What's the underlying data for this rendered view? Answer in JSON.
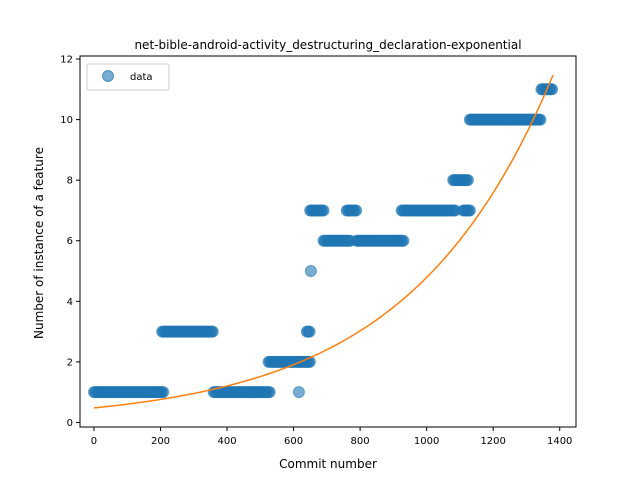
{
  "chart_data": {
    "type": "scatter",
    "title": "net-bible-android-activity_destructuring_declaration-exponential",
    "xlabel": "Commit number",
    "ylabel": "Number of instance of a feature",
    "xlim": [
      -42,
      1449
    ],
    "ylim": [
      -0.15,
      12.1
    ],
    "xticks": [
      0,
      200,
      400,
      600,
      800,
      1000,
      1200,
      1400
    ],
    "yticks": [
      0,
      2,
      4,
      6,
      8,
      10,
      12
    ],
    "grid": false,
    "legend": {
      "position": "top-left",
      "entries": [
        "data"
      ]
    },
    "series": [
      {
        "name": "data",
        "kind": "points",
        "color": "#1f77b4",
        "segments": [
          {
            "x_start": 0,
            "x_end": 210,
            "y": 1
          },
          {
            "x_start": 205,
            "x_end": 360,
            "y": 3
          },
          {
            "x_start": 360,
            "x_end": 530,
            "y": 1
          },
          {
            "x_start": 525,
            "x_end": 650,
            "y": 2
          },
          {
            "x_start": 640,
            "x_end": 650,
            "y": 3
          },
          {
            "x_start": 650,
            "x_end": 690,
            "y": 7
          },
          {
            "x_start": 690,
            "x_end": 770,
            "y": 6
          },
          {
            "x_start": 760,
            "x_end": 790,
            "y": 7
          },
          {
            "x_start": 790,
            "x_end": 930,
            "y": 6
          },
          {
            "x_start": 925,
            "x_end": 1085,
            "y": 7
          },
          {
            "x_start": 1080,
            "x_end": 1125,
            "y": 8
          },
          {
            "x_start": 1110,
            "x_end": 1130,
            "y": 7
          },
          {
            "x_start": 1130,
            "x_end": 1345,
            "y": 10
          },
          {
            "x_start": 1345,
            "x_end": 1380,
            "y": 11
          }
        ],
        "points": [
          {
            "x": 616,
            "y": 1
          },
          {
            "x": 652,
            "y": 5
          }
        ]
      },
      {
        "name": "",
        "kind": "line",
        "color": "#ff7f0e",
        "fit": {
          "model": "exponential",
          "a": 0.48,
          "b": 0.0023
        },
        "x_range": [
          0,
          1380
        ]
      }
    ]
  }
}
